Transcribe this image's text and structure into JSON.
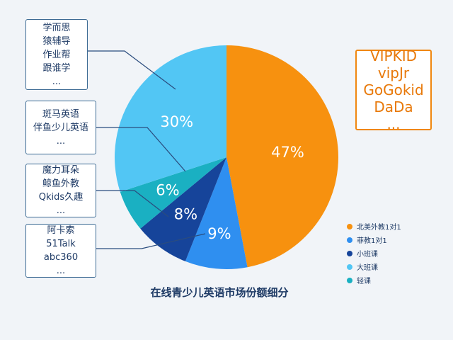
{
  "chart_data": {
    "type": "pie",
    "title": "在线青少儿英语市场份额细分",
    "slices": [
      {
        "label": "北美外教1对1",
        "value": 47,
        "value_label": "47%",
        "color": "#f7910f",
        "brands": [
          "VIPKID",
          "vipJr",
          "GoGokid",
          "DaDa",
          "..."
        ]
      },
      {
        "label": "菲教1对1",
        "value": 9,
        "value_label": "9%",
        "color": "#2f8ff0",
        "brands": [
          "阿卡索",
          "51Talk",
          "abc360",
          "..."
        ]
      },
      {
        "label": "小班课",
        "value": 8,
        "value_label": "8%",
        "color": "#16449a",
        "brands": [
          "魔力耳朵",
          "鲸鱼外教",
          "Qkids久趣",
          "..."
        ]
      },
      {
        "label": "轻课",
        "value": 6,
        "value_label": "6%",
        "color": "#1ab0c2",
        "brands": [
          "斑马英语",
          "伴鱼少儿英语",
          "..."
        ]
      },
      {
        "label": "大班课",
        "value": 30,
        "value_label": "30%",
        "color": "#52c6f4",
        "brands": [
          "学而思",
          "猿辅导",
          "作业帮",
          "跟谁学",
          "..."
        ]
      }
    ],
    "legend": {
      "placement": "right",
      "items": [
        {
          "label": "北美外教1对1",
          "color": "#f7910f"
        },
        {
          "label": "菲教1对1",
          "color": "#2f8ff0"
        },
        {
          "label": "小班课",
          "color": "#16449a"
        },
        {
          "label": "大班课",
          "color": "#52c6f4"
        },
        {
          "label": "轻课",
          "color": "#1ab0c2"
        }
      ]
    },
    "connector_color": "#2b4c7e"
  }
}
